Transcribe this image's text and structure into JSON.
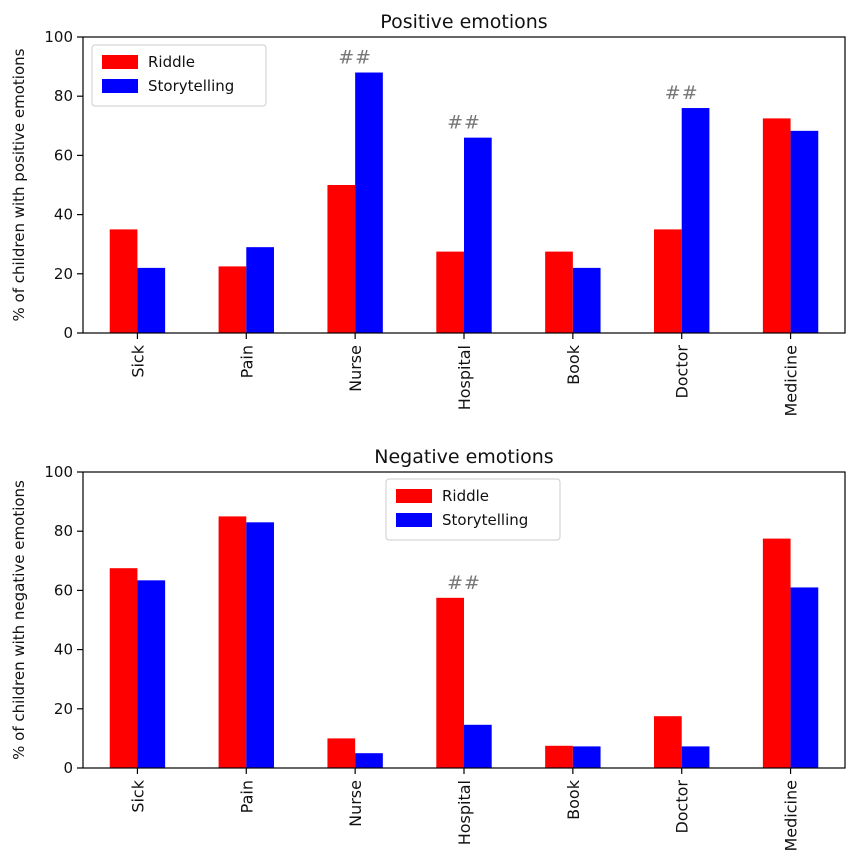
{
  "chart_data": [
    {
      "type": "bar",
      "title": "Positive emotions",
      "ylabel": "% of children with positive emotions",
      "xlabel": "",
      "ylim": [
        0,
        100
      ],
      "yticks": [
        0,
        20,
        40,
        60,
        80,
        100
      ],
      "categories": [
        "Sick",
        "Pain",
        "Nurse",
        "Hospital",
        "Book",
        "Doctor",
        "Medicine"
      ],
      "series": [
        {
          "name": "Riddle",
          "color": "#ff0000",
          "values": [
            35,
            22.5,
            50,
            27.5,
            27.5,
            35,
            72.5
          ]
        },
        {
          "name": "Storytelling",
          "color": "#0000ff",
          "values": [
            22,
            29,
            88,
            66,
            22,
            76,
            68.3
          ]
        }
      ],
      "annotations": [
        {
          "category": "Nurse",
          "text": "##"
        },
        {
          "category": "Hospital",
          "text": "##"
        },
        {
          "category": "Doctor",
          "text": "##"
        }
      ],
      "legend": "top-left",
      "grid": false
    },
    {
      "type": "bar",
      "title": "Negative emotions",
      "ylabel": "% of children with negative emotions",
      "xlabel": "",
      "ylim": [
        0,
        100
      ],
      "yticks": [
        0,
        20,
        40,
        60,
        80,
        100
      ],
      "categories": [
        "Sick",
        "Pain",
        "Nurse",
        "Hospital",
        "Book",
        "Doctor",
        "Medicine"
      ],
      "series": [
        {
          "name": "Riddle",
          "color": "#ff0000",
          "values": [
            67.5,
            85,
            10,
            57.5,
            7.5,
            17.5,
            77.5
          ]
        },
        {
          "name": "Storytelling",
          "color": "#0000ff",
          "values": [
            63.4,
            83,
            5,
            14.6,
            7.3,
            7.3,
            61
          ]
        }
      ],
      "annotations": [
        {
          "category": "Hospital",
          "text": "##"
        }
      ],
      "legend": "top-center",
      "grid": false
    }
  ]
}
